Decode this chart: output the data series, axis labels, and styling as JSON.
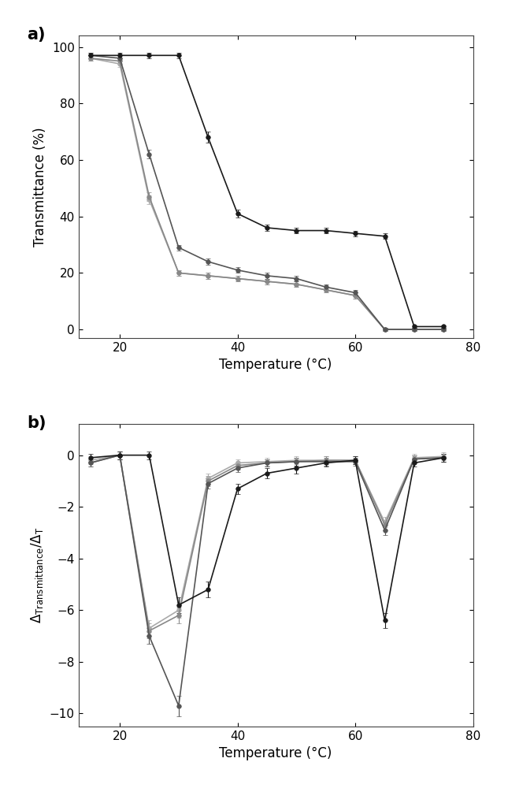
{
  "temp": [
    15,
    20,
    25,
    30,
    35,
    40,
    45,
    50,
    55,
    60,
    65,
    70,
    75
  ],
  "series_a": {
    "black": {
      "y": [
        97,
        97,
        97,
        97,
        68,
        41,
        36,
        35,
        35,
        34,
        33,
        1,
        1
      ],
      "yerr": [
        1,
        1,
        1,
        1,
        2,
        1.5,
        1,
        1,
        1,
        1,
        1,
        0.5,
        0.5
      ],
      "color": "#1a1a1a"
    },
    "dark_gray": {
      "y": [
        97,
        96,
        62,
        29,
        24,
        21,
        19,
        18,
        15,
        13,
        0,
        0,
        0
      ],
      "yerr": [
        1,
        1,
        1.5,
        1,
        1,
        1,
        1,
        1,
        1,
        1,
        0.5,
        0.5,
        0.5
      ],
      "color": "#555555"
    },
    "mid_gray": {
      "y": [
        96,
        95,
        47,
        20,
        19,
        18,
        17,
        16,
        14,
        12,
        0,
        0,
        0
      ],
      "yerr": [
        1,
        1,
        1.5,
        1,
        1,
        1,
        1,
        1,
        1,
        1,
        0.5,
        0.5,
        0.5
      ],
      "color": "#888888"
    },
    "light_gray": {
      "y": [
        96,
        94,
        46,
        20,
        19,
        18,
        17,
        16,
        14,
        12,
        0,
        0,
        0
      ],
      "yerr": [
        1,
        1,
        1.5,
        1,
        1,
        1,
        1,
        1,
        1,
        1,
        0.5,
        0.5,
        0.5
      ],
      "color": "#aaaaaa"
    }
  },
  "series_b": {
    "black": {
      "y": [
        -0.1,
        0.0,
        0.0,
        -5.8,
        -5.2,
        -1.3,
        -0.7,
        -0.5,
        -0.3,
        -0.2,
        -6.4,
        -0.3,
        -0.1
      ],
      "yerr": [
        0.15,
        0.15,
        0.15,
        0.3,
        0.3,
        0.2,
        0.2,
        0.2,
        0.15,
        0.15,
        0.3,
        0.15,
        0.15
      ],
      "color": "#1a1a1a"
    },
    "dark_gray": {
      "y": [
        -0.3,
        0.0,
        -7.0,
        -9.7,
        -1.1,
        -0.5,
        -0.3,
        -0.25,
        -0.25,
        -0.25,
        -2.9,
        -0.15,
        -0.1
      ],
      "yerr": [
        0.15,
        0.15,
        0.3,
        0.4,
        0.2,
        0.15,
        0.15,
        0.15,
        0.15,
        0.15,
        0.2,
        0.15,
        0.15
      ],
      "color": "#555555"
    },
    "mid_gray": {
      "y": [
        -0.3,
        0.0,
        -6.8,
        -6.2,
        -1.0,
        -0.4,
        -0.3,
        -0.25,
        -0.2,
        -0.2,
        -2.7,
        -0.15,
        -0.1
      ],
      "yerr": [
        0.15,
        0.15,
        0.3,
        0.3,
        0.2,
        0.15,
        0.15,
        0.15,
        0.15,
        0.15,
        0.2,
        0.15,
        0.15
      ],
      "color": "#888888"
    },
    "light_gray": {
      "y": [
        -0.2,
        0.0,
        -6.7,
        -6.0,
        -0.9,
        -0.3,
        -0.25,
        -0.2,
        -0.2,
        -0.2,
        -2.6,
        -0.1,
        -0.05
      ],
      "yerr": [
        0.15,
        0.15,
        0.3,
        0.3,
        0.2,
        0.15,
        0.15,
        0.15,
        0.15,
        0.15,
        0.2,
        0.15,
        0.15
      ],
      "color": "#aaaaaa"
    }
  },
  "xlabel": "Temperature (°C)",
  "ylabel_a": "Transmittance (%)",
  "ylabel_b": "$\\Delta_{\\mathrm{Transmittance}}/\\Delta_{\\mathrm{T}}$",
  "xlim": [
    13,
    80
  ],
  "xticks": [
    20,
    40,
    60,
    80
  ],
  "ylim_a": [
    -3,
    104
  ],
  "yticks_a": [
    0,
    20,
    40,
    60,
    80,
    100
  ],
  "ylim_b": [
    -10.5,
    1.2
  ],
  "yticks_b": [
    -10,
    -8,
    -6,
    -4,
    -2,
    0
  ],
  "label_a": "a)",
  "label_b": "b)",
  "marker": "o",
  "markersize": 4,
  "linewidth": 1.2,
  "capsize": 2,
  "elinewidth": 0.8,
  "background_color": "#ffffff",
  "fig_width": 6.45,
  "fig_height": 10.0
}
